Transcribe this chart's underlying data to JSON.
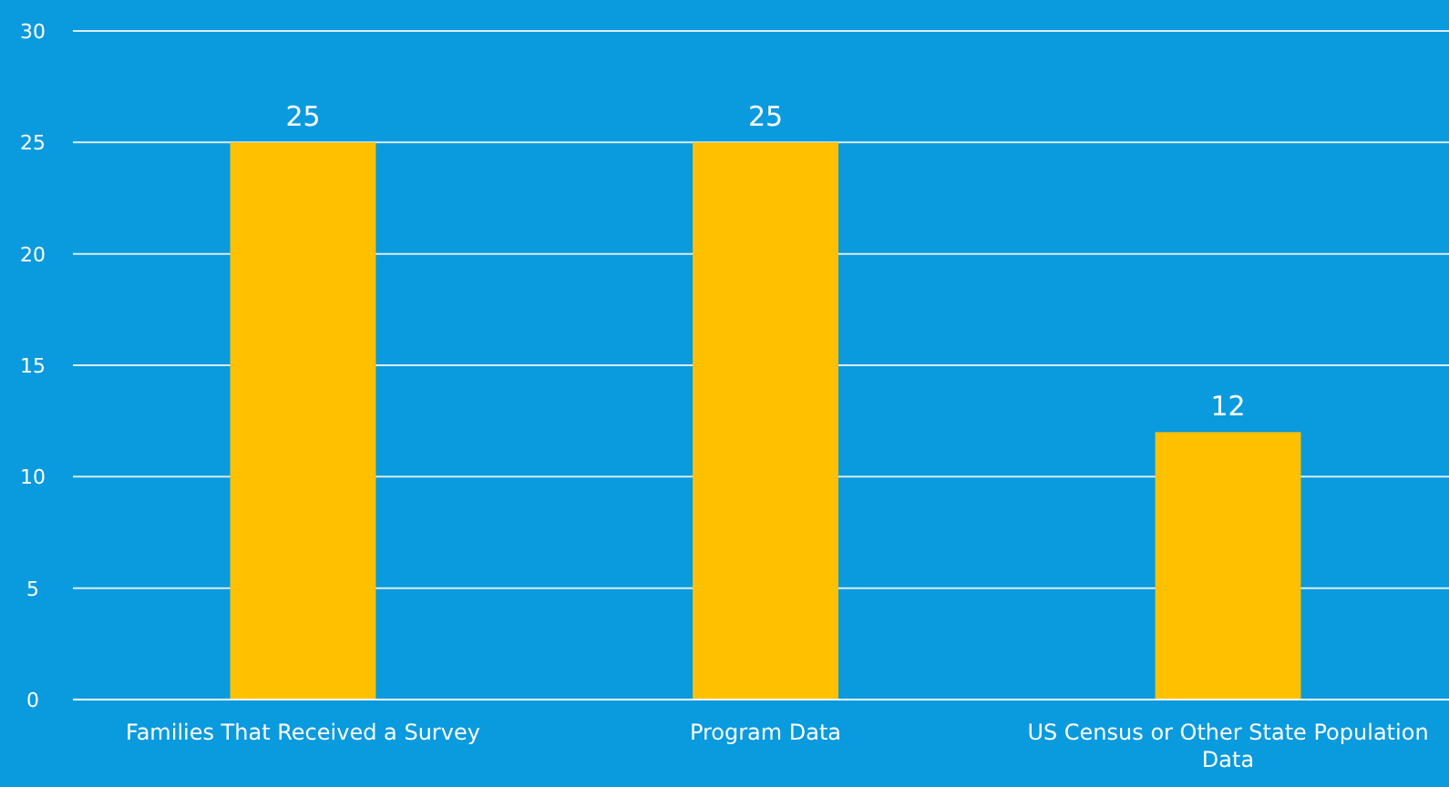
{
  "chart_data": {
    "type": "bar",
    "categories": [
      "Families That Received a Survey",
      "Program Data",
      "US Census or Other State Population Data"
    ],
    "values": [
      25,
      25,
      12
    ],
    "color": "#ffc000",
    "ylim": [
      0,
      30
    ],
    "yticks": [
      0,
      5,
      10,
      15,
      20,
      25,
      30
    ],
    "grid": "y",
    "data_labels": true
  }
}
